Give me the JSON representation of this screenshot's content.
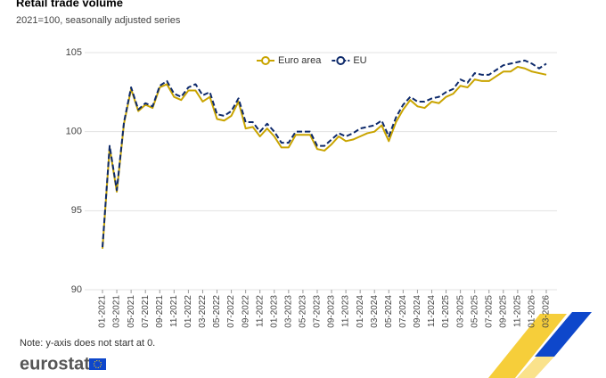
{
  "chart_data": {
    "type": "line",
    "title": "Retail trade volume",
    "subtitle": "2021=100, seasonally adjusted series",
    "note": "Note: y-axis does not start at 0.",
    "logo": "eurostat",
    "categories": [
      "01-2021",
      null,
      "03-2021",
      null,
      "05-2021",
      null,
      "07-2021",
      null,
      "09-2021",
      null,
      "11-2021",
      null,
      "01-2022",
      null,
      "03-2022",
      null,
      "05-2022",
      null,
      "07-2022",
      null,
      "09-2022",
      null,
      "11-2022",
      null,
      "01-2023",
      null,
      "03-2023",
      null,
      "05-2023",
      null,
      "07-2023",
      null,
      "09-2023",
      null,
      "11-2023",
      null,
      "01-2024",
      null,
      "03-2024",
      null,
      "05-2024",
      null,
      "07-2024",
      null,
      "09-2024",
      null,
      "11-2024",
      null,
      "01-2025",
      null,
      "03-2025",
      null,
      "05-2025",
      null,
      "07-2025",
      null,
      "09-2025",
      null,
      "11-2025",
      null,
      "01-2026",
      null,
      "03-2026"
    ],
    "series": [
      {
        "name": "Euro area",
        "color": "#c9a400",
        "style": "solid",
        "values": [
          92.6,
          99.0,
          96.2,
          100.5,
          102.7,
          101.3,
          101.7,
          101.5,
          102.8,
          103.0,
          102.2,
          102.0,
          102.6,
          102.6,
          101.9,
          102.2,
          100.8,
          100.7,
          101.0,
          101.9,
          100.2,
          100.3,
          99.7,
          100.2,
          99.7,
          99.0,
          99.0,
          99.8,
          99.8,
          99.8,
          98.9,
          98.8,
          99.2,
          99.7,
          99.4,
          99.5,
          99.7,
          99.9,
          100.0,
          100.4,
          99.4,
          100.6,
          101.4,
          102.0,
          101.6,
          101.5,
          101.9,
          101.8,
          102.2,
          102.4,
          102.9,
          102.8,
          103.3,
          103.2,
          103.2,
          103.5,
          103.8,
          103.8,
          104.1,
          104.0,
          103.8,
          103.7,
          103.6
        ]
      },
      {
        "name": "EU",
        "color": "#0e2a6b",
        "style": "dashed",
        "values": [
          92.7,
          99.1,
          96.3,
          100.6,
          102.8,
          101.4,
          101.8,
          101.6,
          102.9,
          103.2,
          102.4,
          102.2,
          102.8,
          103.0,
          102.3,
          102.5,
          101.1,
          101.0,
          101.3,
          102.1,
          100.6,
          100.6,
          100.0,
          100.5,
          100.0,
          99.3,
          99.3,
          100.0,
          100.0,
          100.0,
          99.1,
          99.1,
          99.5,
          99.9,
          99.7,
          99.9,
          100.2,
          100.3,
          100.4,
          100.7,
          99.7,
          100.9,
          101.7,
          102.2,
          101.9,
          101.9,
          102.1,
          102.2,
          102.5,
          102.7,
          103.3,
          103.1,
          103.7,
          103.6,
          103.6,
          103.9,
          104.2,
          104.3,
          104.4,
          104.5,
          104.3,
          104.0,
          104.3
        ]
      }
    ],
    "ylim": [
      90,
      105
    ],
    "yticks": [
      90,
      95,
      100,
      105
    ],
    "grid": true
  }
}
